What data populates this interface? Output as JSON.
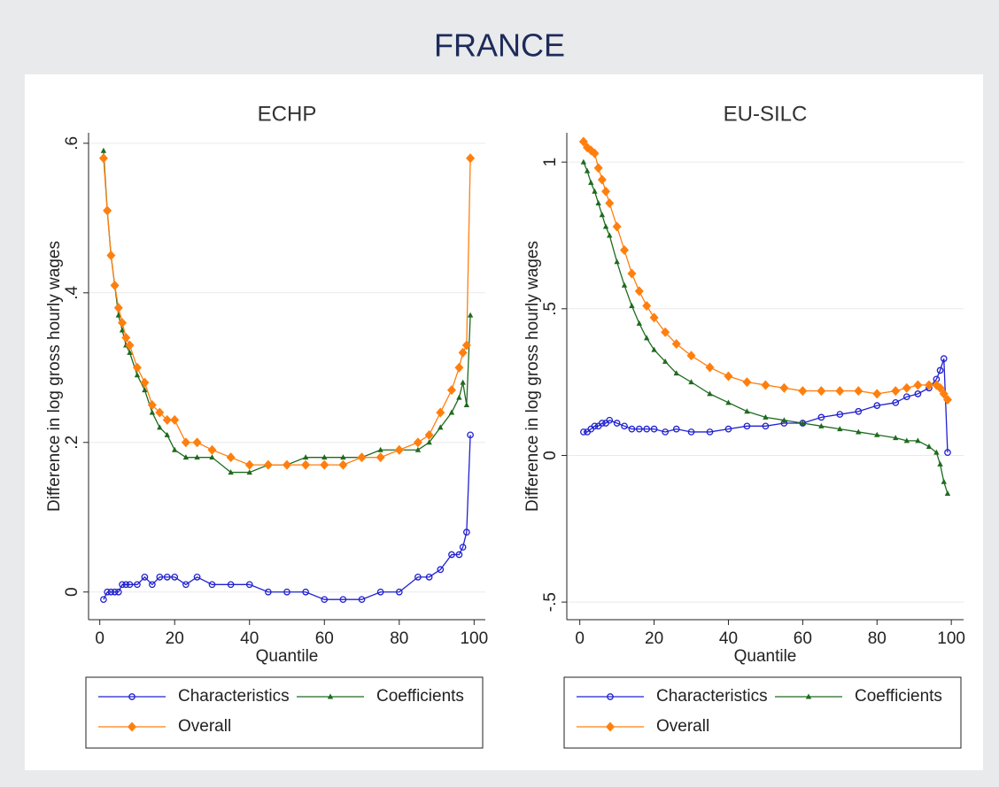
{
  "title": "FRANCE",
  "chart_data": [
    {
      "type": "line",
      "title": "ECHP",
      "x_label": "Quantile",
      "y_label": "Difference in log gross hourly wages",
      "x": [
        1,
        2,
        3,
        4,
        5,
        6,
        7,
        8,
        10,
        12,
        14,
        16,
        18,
        20,
        23,
        26,
        30,
        35,
        40,
        45,
        50,
        55,
        60,
        65,
        70,
        75,
        80,
        85,
        88,
        91,
        94,
        96,
        97,
        98,
        99
      ],
      "series": [
        {
          "name": "Characteristics",
          "color": "#2020d0",
          "marker": "circle",
          "values": [
            -0.01,
            0,
            0,
            0,
            0,
            0.01,
            0.01,
            0.01,
            0.01,
            0.02,
            0.01,
            0.02,
            0.02,
            0.02,
            0.01,
            0.02,
            0.01,
            0.01,
            0.01,
            0,
            0,
            0,
            -0.01,
            -0.01,
            -0.01,
            0,
            0,
            0.02,
            0.02,
            0.03,
            0.05,
            0.05,
            0.06,
            0.08,
            0.21
          ]
        },
        {
          "name": "Coefficients",
          "color": "#1f6b1f",
          "marker": "triangle",
          "values": [
            0.59,
            0.51,
            0.45,
            0.41,
            0.37,
            0.35,
            0.33,
            0.32,
            0.29,
            0.27,
            0.24,
            0.22,
            0.21,
            0.19,
            0.18,
            0.18,
            0.18,
            0.16,
            0.16,
            0.17,
            0.17,
            0.18,
            0.18,
            0.18,
            0.18,
            0.19,
            0.19,
            0.19,
            0.2,
            0.22,
            0.24,
            0.26,
            0.28,
            0.25,
            0.37
          ]
        },
        {
          "name": "Overall",
          "color": "#ff7f0e",
          "marker": "diamond",
          "values": [
            0.58,
            0.51,
            0.45,
            0.41,
            0.38,
            0.36,
            0.34,
            0.33,
            0.3,
            0.28,
            0.25,
            0.24,
            0.23,
            0.23,
            0.2,
            0.2,
            0.19,
            0.18,
            0.17,
            0.17,
            0.17,
            0.17,
            0.17,
            0.17,
            0.18,
            0.18,
            0.19,
            0.2,
            0.21,
            0.24,
            0.27,
            0.3,
            0.32,
            0.33,
            0.58
          ]
        }
      ],
      "xlim": [
        -3,
        103
      ],
      "ylim": [
        -0.037,
        0.614
      ],
      "xticks": [
        0,
        20,
        40,
        60,
        80,
        100
      ],
      "yticks": [
        0,
        {
          "value": 0.2,
          "label": ".2"
        },
        {
          "value": 0.4,
          "label": ".4"
        },
        {
          "value": 0.6,
          "label": ".6"
        }
      ],
      "grid": true,
      "legend": "bottom"
    },
    {
      "type": "line",
      "title": "EU-SILC",
      "x_label": "Quantile",
      "y_label": "Difference in log gross hourly wages",
      "x": [
        1,
        2,
        3,
        4,
        5,
        6,
        7,
        8,
        10,
        12,
        14,
        16,
        18,
        20,
        23,
        26,
        30,
        35,
        40,
        45,
        50,
        55,
        60,
        65,
        70,
        75,
        80,
        85,
        88,
        91,
        94,
        96,
        97,
        98,
        99
      ],
      "series": [
        {
          "name": "Characteristics",
          "color": "#2020d0",
          "marker": "circle",
          "values": [
            0.08,
            0.08,
            0.09,
            0.1,
            0.1,
            0.11,
            0.11,
            0.12,
            0.11,
            0.1,
            0.09,
            0.09,
            0.09,
            0.09,
            0.08,
            0.09,
            0.08,
            0.08,
            0.09,
            0.1,
            0.1,
            0.11,
            0.11,
            0.13,
            0.14,
            0.15,
            0.17,
            0.18,
            0.2,
            0.21,
            0.23,
            0.26,
            0.29,
            0.33,
            0.01
          ]
        },
        {
          "name": "Coefficients",
          "color": "#1f6b1f",
          "marker": "triangle",
          "values": [
            1,
            0.97,
            0.93,
            0.9,
            0.86,
            0.82,
            0.78,
            0.75,
            0.66,
            0.58,
            0.51,
            0.45,
            0.4,
            0.36,
            0.32,
            0.28,
            0.25,
            0.21,
            0.18,
            0.15,
            0.13,
            0.12,
            0.11,
            0.1,
            0.09,
            0.08,
            0.07,
            0.06,
            0.05,
            0.05,
            0.03,
            0.01,
            -0.03,
            -0.09,
            -0.13
          ]
        },
        {
          "name": "Overall",
          "color": "#ff7f0e",
          "marker": "diamond",
          "values": [
            1.07,
            1.05,
            1.04,
            1.03,
            0.98,
            0.94,
            0.9,
            0.86,
            0.78,
            0.7,
            0.62,
            0.56,
            0.51,
            0.47,
            0.42,
            0.38,
            0.34,
            0.3,
            0.27,
            0.25,
            0.24,
            0.23,
            0.22,
            0.22,
            0.22,
            0.22,
            0.21,
            0.22,
            0.23,
            0.24,
            0.24,
            0.24,
            0.23,
            0.21,
            0.19
          ]
        }
      ],
      "xlim": [
        -3.5,
        103.3
      ],
      "ylim": [
        -0.56,
        1.1
      ],
      "xticks": [
        0,
        20,
        40,
        60,
        80,
        100
      ],
      "yticks": [
        {
          "value": -0.5,
          "label": "-.5"
        },
        0,
        {
          "value": 0.5,
          "label": ".5"
        },
        1
      ],
      "grid": true,
      "legend": "bottom"
    }
  ]
}
